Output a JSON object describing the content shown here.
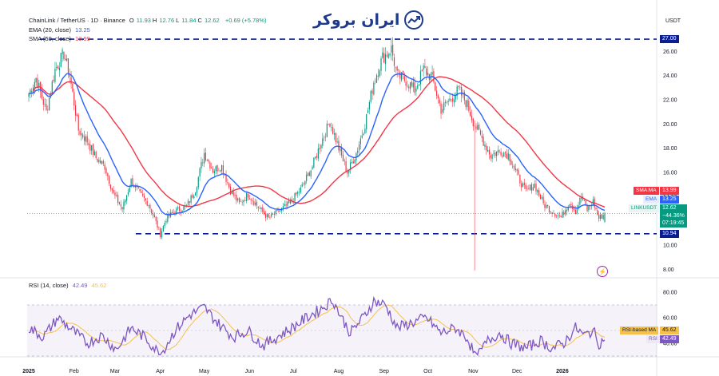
{
  "header": {
    "symbol": "ChainLink / TetherUS · 1D · Binance",
    "ohlc": [
      {
        "key": "O",
        "value": "11.93"
      },
      {
        "key": "H",
        "value": "12.76"
      },
      {
        "key": "L",
        "value": "11.84"
      },
      {
        "key": "C",
        "value": "12.62"
      }
    ],
    "change": "+0.69 (+5.78%)",
    "currency": "USDT"
  },
  "logo": {
    "text": "ایران بروکر",
    "icon": "chart-trend-icon"
  },
  "indicators": {
    "ema": {
      "label": "EMA (20, close)",
      "value": "13.25",
      "color": "#2962ff"
    },
    "sma": {
      "label": "SMA (50, close)",
      "value": "13.99",
      "color": "#f23645"
    }
  },
  "rsi": {
    "label": "RSI (14, close)",
    "value": "42.49",
    "ma_value": "45.62",
    "ma_label": "RSI-based MA",
    "tag_label": "RSI",
    "color": "#7e57c2",
    "ma_color": "#f5c14b",
    "axis_ticks": [
      "80.00",
      "60.00",
      "40.00"
    ]
  },
  "price_tags": {
    "resistance": {
      "value": "27.00",
      "color": "#0b1e8f"
    },
    "sma": {
      "label": "SMA:MA",
      "value": "13.99",
      "color": "#f23645"
    },
    "ema": {
      "label": "EMA",
      "value": "13.25",
      "color": "#2962ff"
    },
    "last": {
      "label": "LINKUSDT",
      "value": "12.62",
      "change": "−44.36%",
      "countdown": "07:19:45",
      "color": "#089981"
    },
    "support": {
      "value": "10.94",
      "color": "#0b1e8f"
    }
  },
  "chart_data": {
    "type": "candlestick",
    "price_axis_ticks": [
      "26.00",
      "24.00",
      "22.00",
      "20.00",
      "18.00",
      "16.00",
      "14.00",
      "12.00",
      "10.00",
      "8.00"
    ],
    "time_axis_labels": [
      "2025",
      "Feb",
      "Mar",
      "Apr",
      "May",
      "Jun",
      "Jul",
      "Aug",
      "Sep",
      "Oct",
      "Nov",
      "Dec",
      "2026"
    ],
    "levels": {
      "resistance": 27.0,
      "support": 10.94
    },
    "price_anchors": [
      {
        "t": 0,
        "p": 22.5
      },
      {
        "t": 5,
        "p": 23.8
      },
      {
        "t": 12,
        "p": 21.0
      },
      {
        "t": 18,
        "p": 24.5
      },
      {
        "t": 24,
        "p": 25.8
      },
      {
        "t": 28,
        "p": 24.0
      },
      {
        "t": 34,
        "p": 19.5
      },
      {
        "t": 40,
        "p": 18.6
      },
      {
        "t": 46,
        "p": 17.2
      },
      {
        "t": 52,
        "p": 16.5
      },
      {
        "t": 58,
        "p": 14.2
      },
      {
        "t": 64,
        "p": 13.0
      },
      {
        "t": 70,
        "p": 15.3
      },
      {
        "t": 76,
        "p": 14.2
      },
      {
        "t": 82,
        "p": 13.4
      },
      {
        "t": 86,
        "p": 12.2
      },
      {
        "t": 90,
        "p": 10.9
      },
      {
        "t": 94,
        "p": 12.2
      },
      {
        "t": 100,
        "p": 12.8
      },
      {
        "t": 108,
        "p": 13.2
      },
      {
        "t": 114,
        "p": 14.6
      },
      {
        "t": 120,
        "p": 17.6
      },
      {
        "t": 126,
        "p": 16.2
      },
      {
        "t": 132,
        "p": 16.5
      },
      {
        "t": 138,
        "p": 14.5
      },
      {
        "t": 144,
        "p": 13.4
      },
      {
        "t": 150,
        "p": 14.2
      },
      {
        "t": 158,
        "p": 13.0
      },
      {
        "t": 164,
        "p": 12.2
      },
      {
        "t": 170,
        "p": 12.7
      },
      {
        "t": 178,
        "p": 13.4
      },
      {
        "t": 186,
        "p": 14.6
      },
      {
        "t": 194,
        "p": 16.5
      },
      {
        "t": 200,
        "p": 18.5
      },
      {
        "t": 206,
        "p": 20.2
      },
      {
        "t": 212,
        "p": 18.0
      },
      {
        "t": 218,
        "p": 16.0
      },
      {
        "t": 224,
        "p": 17.6
      },
      {
        "t": 230,
        "p": 20.0
      },
      {
        "t": 236,
        "p": 23.5
      },
      {
        "t": 242,
        "p": 25.5
      },
      {
        "t": 248,
        "p": 26.2
      },
      {
        "t": 252,
        "p": 24.0
      },
      {
        "t": 258,
        "p": 23.6
      },
      {
        "t": 264,
        "p": 22.8
      },
      {
        "t": 270,
        "p": 24.5
      },
      {
        "t": 276,
        "p": 23.8
      },
      {
        "t": 282,
        "p": 21.2
      },
      {
        "t": 288,
        "p": 22.0
      },
      {
        "t": 294,
        "p": 22.8
      },
      {
        "t": 300,
        "p": 21.6
      },
      {
        "t": 304,
        "p": 20.2
      },
      {
        "t": 310,
        "p": 18.8
      },
      {
        "t": 316,
        "p": 17.4
      },
      {
        "t": 322,
        "p": 17.8
      },
      {
        "t": 328,
        "p": 17.5
      },
      {
        "t": 334,
        "p": 15.8
      },
      {
        "t": 340,
        "p": 14.4
      },
      {
        "t": 346,
        "p": 15.0
      },
      {
        "t": 352,
        "p": 13.4
      },
      {
        "t": 358,
        "p": 12.8
      },
      {
        "t": 364,
        "p": 12.3
      },
      {
        "t": 370,
        "p": 13.6
      },
      {
        "t": 374,
        "p": 12.8
      },
      {
        "t": 378,
        "p": 14.0
      },
      {
        "t": 382,
        "p": 12.9
      },
      {
        "t": 386,
        "p": 13.6
      },
      {
        "t": 390,
        "p": 12.2
      },
      {
        "t": 394,
        "p": 12.6
      }
    ],
    "rsi_anchors": [
      {
        "t": 0,
        "v": 52
      },
      {
        "t": 10,
        "v": 45
      },
      {
        "t": 20,
        "v": 60
      },
      {
        "t": 30,
        "v": 50
      },
      {
        "t": 40,
        "v": 40
      },
      {
        "t": 50,
        "v": 46
      },
      {
        "t": 60,
        "v": 35
      },
      {
        "t": 70,
        "v": 52
      },
      {
        "t": 80,
        "v": 44
      },
      {
        "t": 90,
        "v": 31
      },
      {
        "t": 100,
        "v": 50
      },
      {
        "t": 110,
        "v": 62
      },
      {
        "t": 120,
        "v": 68
      },
      {
        "t": 130,
        "v": 55
      },
      {
        "t": 140,
        "v": 45
      },
      {
        "t": 150,
        "v": 50
      },
      {
        "t": 160,
        "v": 38
      },
      {
        "t": 170,
        "v": 45
      },
      {
        "t": 180,
        "v": 52
      },
      {
        "t": 190,
        "v": 60
      },
      {
        "t": 200,
        "v": 67
      },
      {
        "t": 208,
        "v": 74
      },
      {
        "t": 214,
        "v": 60
      },
      {
        "t": 220,
        "v": 48
      },
      {
        "t": 230,
        "v": 62
      },
      {
        "t": 236,
        "v": 73
      },
      {
        "t": 244,
        "v": 70
      },
      {
        "t": 252,
        "v": 52
      },
      {
        "t": 262,
        "v": 56
      },
      {
        "t": 272,
        "v": 60
      },
      {
        "t": 282,
        "v": 48
      },
      {
        "t": 292,
        "v": 52
      },
      {
        "t": 300,
        "v": 44
      },
      {
        "t": 306,
        "v": 28
      },
      {
        "t": 314,
        "v": 42
      },
      {
        "t": 322,
        "v": 48
      },
      {
        "t": 330,
        "v": 40
      },
      {
        "t": 340,
        "v": 36
      },
      {
        "t": 350,
        "v": 42
      },
      {
        "t": 358,
        "v": 36
      },
      {
        "t": 366,
        "v": 40
      },
      {
        "t": 374,
        "v": 52
      },
      {
        "t": 380,
        "v": 46
      },
      {
        "t": 386,
        "v": 50
      },
      {
        "t": 390,
        "v": 40
      },
      {
        "t": 394,
        "v": 42.49
      }
    ],
    "rsi_range": [
      30,
      90
    ],
    "rsi_band": [
      30,
      70
    ],
    "price_range": [
      7.5,
      27.6
    ]
  }
}
